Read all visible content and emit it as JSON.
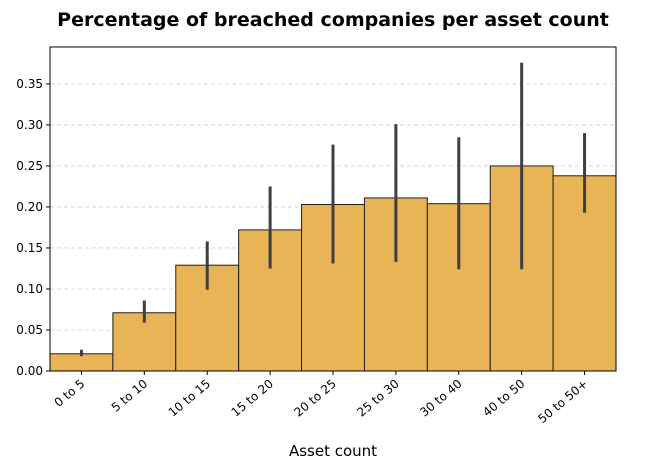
{
  "chart_data": {
    "type": "bar",
    "title": "Percentage of breached companies per asset count",
    "xlabel": "Asset count",
    "ylabel": "",
    "categories": [
      "0 to 5",
      "5 to 10",
      "10 to 15",
      "15 to 20",
      "20 to 25",
      "25 to 30",
      "30 to 40",
      "40 to 50",
      "50 to 50+"
    ],
    "values": [
      0.021,
      0.071,
      0.129,
      0.172,
      0.203,
      0.211,
      0.204,
      0.25,
      0.238
    ],
    "error_low": [
      0.018,
      0.059,
      0.099,
      0.125,
      0.131,
      0.133,
      0.124,
      0.124,
      0.193
    ],
    "error_high": [
      0.026,
      0.086,
      0.158,
      0.225,
      0.276,
      0.301,
      0.285,
      0.376,
      0.29
    ],
    "ylim": [
      0,
      0.395
    ],
    "yticks": [
      "0.00",
      "0.05",
      "0.10",
      "0.15",
      "0.20",
      "0.25",
      "0.30",
      "0.35"
    ],
    "grid": "y-dashed",
    "bar_color": "#e8b455",
    "edge_color": "#1e1e1e",
    "error_color": "#3f3f3f"
  }
}
